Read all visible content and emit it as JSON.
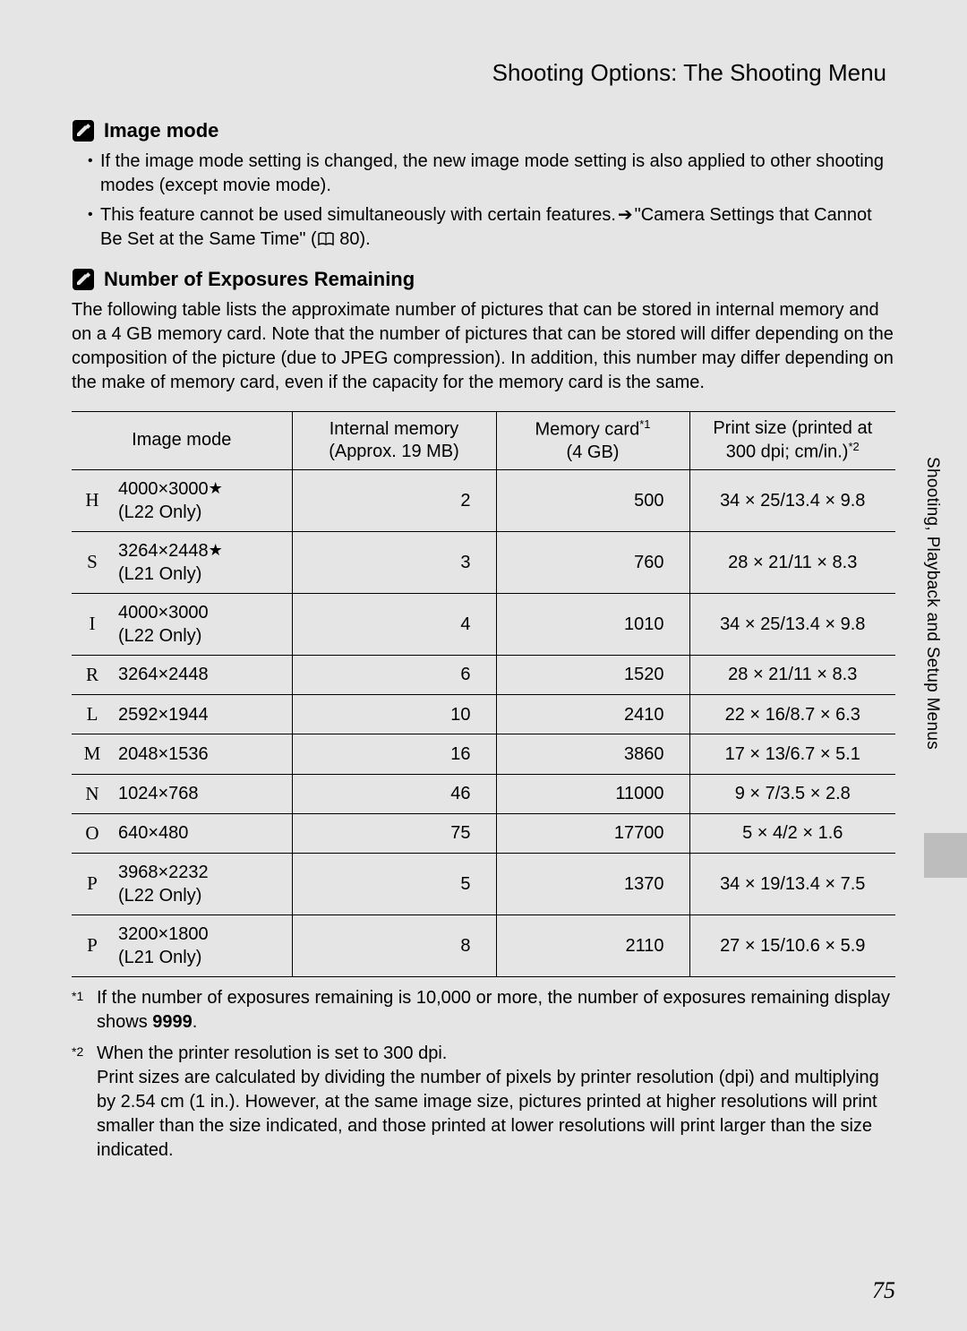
{
  "header": {
    "title": "Shooting Options: The Shooting Menu"
  },
  "section1": {
    "heading": "Image mode",
    "bullets": [
      "If the image mode setting is changed, the new image mode setting is also applied to other shooting modes (except movie mode).",
      "This feature cannot be used simultaneously with certain features. ➔ \"Camera Settings that Cannot Be Set at the Same Time\" (📖 80)."
    ]
  },
  "section2": {
    "heading": "Number of Exposures Remaining",
    "intro": "The following table lists the approximate number of pictures that can be stored in internal memory and on a 4 GB memory card. Note that the number of pictures that can be stored will differ depending on the composition of the picture (due to JPEG compression). In addition, this number may differ depending on the make of memory card, even if the capacity for the memory card is the same."
  },
  "table": {
    "headers": {
      "mode": "Image mode",
      "internal_line1": "Internal memory",
      "internal_line2": "(Approx. 19 MB)",
      "card_line1": "Memory card",
      "card_sup": "*1",
      "card_line2": "(4 GB)",
      "print_line1": "Print size (printed at",
      "print_line2": "300 dpi; cm/in.)",
      "print_sup": "*2"
    },
    "rows": [
      {
        "letter": "H",
        "mode": "4000×3000",
        "star": true,
        "note": "(L22 Only)",
        "mem": "2",
        "card": "500",
        "print": "34 × 25/13.4 × 9.8"
      },
      {
        "letter": "S",
        "mode": "3264×2448",
        "star": true,
        "note": "(L21 Only)",
        "mem": "3",
        "card": "760",
        "print": "28 × 21/11 × 8.3"
      },
      {
        "letter": "I",
        "mode": "4000×3000",
        "star": false,
        "note": "(L22 Only)",
        "mem": "4",
        "card": "1010",
        "print": "34 × 25/13.4 × 9.8"
      },
      {
        "letter": "R",
        "mode": "3264×2448",
        "star": false,
        "note": "",
        "mem": "6",
        "card": "1520",
        "print": "28 × 21/11 × 8.3"
      },
      {
        "letter": "L",
        "mode": "2592×1944",
        "star": false,
        "note": "",
        "mem": "10",
        "card": "2410",
        "print": "22 × 16/8.7 × 6.3"
      },
      {
        "letter": "M",
        "mode": "2048×1536",
        "star": false,
        "note": "",
        "mem": "16",
        "card": "3860",
        "print": "17 × 13/6.7 × 5.1"
      },
      {
        "letter": "N",
        "mode": "1024×768",
        "star": false,
        "note": "",
        "mem": "46",
        "card": "11000",
        "print": "9 × 7/3.5 × 2.8"
      },
      {
        "letter": "O",
        "mode": "640×480",
        "star": false,
        "note": "",
        "mem": "75",
        "card": "17700",
        "print": "5 × 4/2 × 1.6"
      },
      {
        "letter": "P",
        "mode": "3968×2232",
        "star": false,
        "note": "(L22 Only)",
        "mem": "5",
        "card": "1370",
        "print": "34 × 19/13.4 × 7.5"
      },
      {
        "letter": "P",
        "mode": "3200×1800",
        "star": false,
        "note": "(L21 Only)",
        "mem": "8",
        "card": "2110",
        "print": "27 × 15/10.6 × 5.9"
      }
    ]
  },
  "footnotes": {
    "f1_mark": "*1",
    "f1_a": "If the number of exposures remaining is 10,000 or more, the number of exposures remaining display shows ",
    "f1_bold": "9999",
    "f1_b": ".",
    "f2_mark": "*2",
    "f2_a": "When the printer resolution is set to 300 dpi.",
    "f2_b": "Print sizes are calculated by dividing the number of pixels by printer resolution (dpi) and multiplying by 2.54 cm (1 in.). However, at the same image size, pictures printed at higher resolutions will print smaller than the size indicated, and those printed at lower resolutions will print larger than the size indicated."
  },
  "side": {
    "text": "Shooting, Playback and Setup Menus"
  },
  "page_number": "75",
  "colors": {
    "page_bg": "#e5e5e5",
    "text": "#000000",
    "rule": "#000000",
    "tab": "#bdbdbd"
  }
}
